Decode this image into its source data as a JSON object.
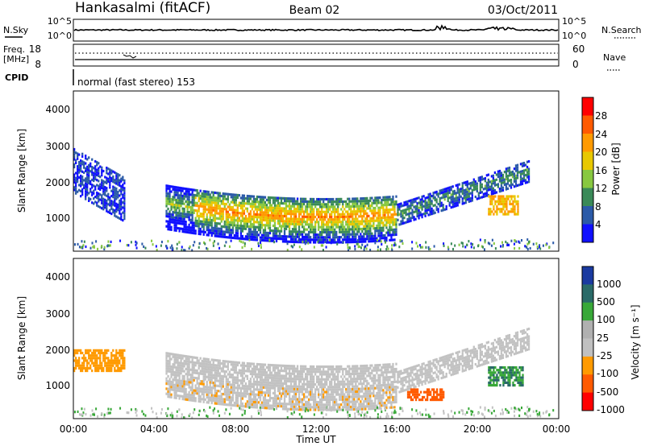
{
  "header": {
    "station": "Hankasalmi (fitACF)",
    "beam": "Beam 02",
    "date": "03/Oct/2011"
  },
  "noise_panel": {
    "left_label": "N.Sky",
    "right_label": "N.Search",
    "left_ticks": [
      "10^5",
      "10^0"
    ],
    "right_ticks": [
      "10^5",
      "10^0"
    ]
  },
  "freq_panel": {
    "left_label_1": "Freq.",
    "left_label_2": "[MHz]",
    "right_label": "Nave",
    "left_ticks": [
      "18",
      "8"
    ],
    "right_ticks": [
      "60",
      "0"
    ]
  },
  "cpid": {
    "label": "CPID",
    "text": "normal (fast stereo) 153"
  },
  "power_panel": {
    "ylabel": "Slant Range [km]",
    "yticks": [
      "4000",
      "3000",
      "2000",
      "1000"
    ],
    "cbar_label": "Power [dB]",
    "cbar_ticks": [
      "28",
      "24",
      "20",
      "16",
      "12",
      "8",
      "4"
    ],
    "cbar_colors": [
      "#ff0000",
      "#ff5a00",
      "#ff9a00",
      "#e8c800",
      "#88c840",
      "#3a8a58",
      "#2b5aa8",
      "#1010ff"
    ]
  },
  "velocity_panel": {
    "ylabel": "Slant Range [km]",
    "yticks": [
      "4000",
      "3000",
      "2000",
      "1000"
    ],
    "cbar_label": "Velocity [m s⁻¹]",
    "cbar_ticks": [
      "1000",
      "500",
      "100",
      "25",
      "-25",
      "-100",
      "-500",
      "-1000"
    ],
    "cbar_colors": [
      "#1a3aa0",
      "#2a6a68",
      "#38a838",
      "#b0b0b0",
      "#c0c0c0",
      "#ff9a00",
      "#ff5a00",
      "#ff0000"
    ]
  },
  "x_axis": {
    "label": "Time UT",
    "ticks": [
      "00:00",
      "04:00",
      "08:00",
      "12:00",
      "16:00",
      "20:00",
      "00:00"
    ]
  },
  "chart_data": {
    "type": "heatmap",
    "title": "Hankasalmi (fitACF)",
    "x_range_hours": [
      0,
      24
    ],
    "y_range_km": [
      180,
      4600
    ],
    "ground_scatter_color": "#c2c2c2",
    "power_features": [
      {
        "start_hour": 4.5,
        "end_hour": 16.0,
        "range_start_km": 1500,
        "range_mid_km": 950,
        "range_end_km": 1200,
        "peak_db": 28
      },
      {
        "start_hour": 16.0,
        "end_hour": 22.5,
        "range_start_km": 1200,
        "range_end_km": 2400,
        "peak_db": 16
      },
      {
        "start_hour": 0.0,
        "end_hour": 2.5,
        "range_start_km": 2700,
        "range_end_km": 1900,
        "peak_db": 10
      },
      {
        "start_hour": 20.5,
        "end_hour": 22.0,
        "range_start_km": 1200,
        "range_end_km": 1700,
        "peak_db": 26
      }
    ],
    "velocity_features": [
      {
        "start_hour": 0.0,
        "end_hour": 2.5,
        "range_start_km": 1500,
        "range_end_km": 2100,
        "velocity_ms": -100
      },
      {
        "start_hour": 16.5,
        "end_hour": 18.3,
        "range_start_km": 700,
        "range_end_km": 1000,
        "velocity_ms": -500
      },
      {
        "start_hour": 20.5,
        "end_hour": 22.2,
        "range_start_km": 1100,
        "range_end_km": 1600,
        "velocity_ms": 300
      }
    ]
  }
}
